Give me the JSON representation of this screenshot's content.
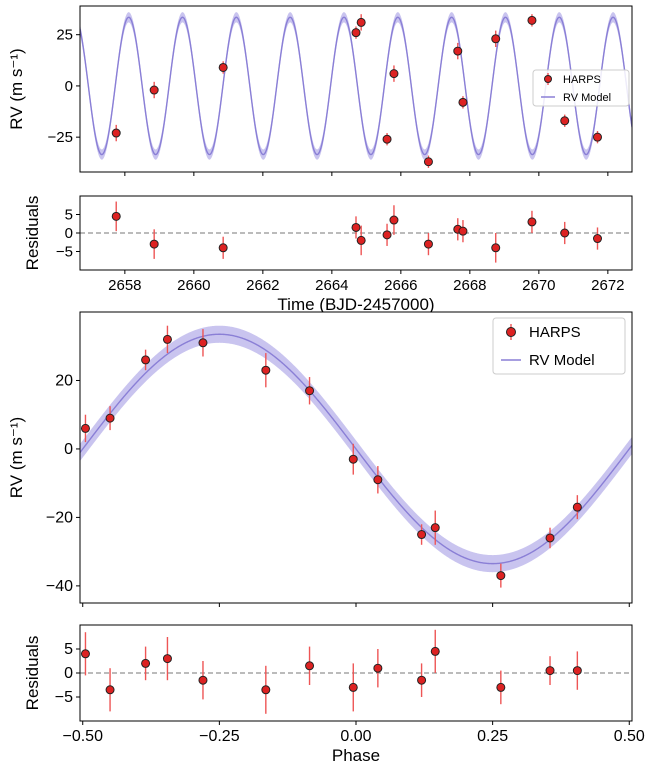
{
  "chart_data": [
    {
      "id": "time_rv",
      "type": "scatter",
      "xlabel": "",
      "ylabel": "RV (m s⁻¹)",
      "xlim": [
        2656.7,
        2672.7
      ],
      "ylim": [
        -42,
        39
      ],
      "yticks": [
        -25,
        0,
        25
      ],
      "legend": {
        "placement": "center-right",
        "entries": [
          "HARPS",
          "RV Model"
        ]
      },
      "model": {
        "name": "RV Model",
        "type": "sinusoid",
        "amplitude": 33.5,
        "period": 1.56,
        "phase_ref_x": 2657.8,
        "phase_ref_phase": -0.45,
        "color": "#8a7fd6",
        "band_color": "#b7b0ea"
      },
      "series": [
        {
          "name": "HARPS",
          "color": "#dd2222",
          "points": [
            {
              "x": 2657.75,
              "y": -23,
              "err": 4
            },
            {
              "x": 2658.85,
              "y": -2,
              "err": 4
            },
            {
              "x": 2660.85,
              "y": 9,
              "err": 3
            },
            {
              "x": 2664.7,
              "y": 26,
              "err": 3
            },
            {
              "x": 2664.85,
              "y": 31,
              "err": 4
            },
            {
              "x": 2665.6,
              "y": -26,
              "err": 3
            },
            {
              "x": 2665.8,
              "y": 6,
              "err": 4
            },
            {
              "x": 2666.8,
              "y": -37,
              "err": 3
            },
            {
              "x": 2667.65,
              "y": 17,
              "err": 4
            },
            {
              "x": 2667.8,
              "y": -8,
              "err": 3
            },
            {
              "x": 2668.75,
              "y": 23,
              "err": 4
            },
            {
              "x": 2669.8,
              "y": 32,
              "err": 3
            },
            {
              "x": 2670.75,
              "y": -17,
              "err": 3
            },
            {
              "x": 2671.7,
              "y": -25,
              "err": 3
            }
          ]
        }
      ]
    },
    {
      "id": "time_resid",
      "type": "scatter",
      "xlabel": "Time (BJD-2457000)",
      "ylabel": "Residuals",
      "xlim": [
        2656.7,
        2672.7
      ],
      "ylim": [
        -10,
        10
      ],
      "yticks": [
        -5,
        0,
        5
      ],
      "xticks": [
        2658,
        2660,
        2662,
        2664,
        2666,
        2668,
        2670,
        2672
      ],
      "zero_line": true,
      "series": [
        {
          "name": "HARPS",
          "color": "#dd2222",
          "points": [
            {
              "x": 2657.75,
              "y": 4.5,
              "err": 4
            },
            {
              "x": 2658.85,
              "y": -3,
              "err": 4
            },
            {
              "x": 2660.85,
              "y": -4,
              "err": 3
            },
            {
              "x": 2664.7,
              "y": 1.5,
              "err": 3
            },
            {
              "x": 2664.85,
              "y": -2,
              "err": 4
            },
            {
              "x": 2665.6,
              "y": -0.5,
              "err": 3
            },
            {
              "x": 2665.8,
              "y": 3.5,
              "err": 4
            },
            {
              "x": 2666.8,
              "y": -3,
              "err": 3
            },
            {
              "x": 2667.65,
              "y": 1,
              "err": 3
            },
            {
              "x": 2667.8,
              "y": 0.5,
              "err": 3
            },
            {
              "x": 2668.75,
              "y": -4,
              "err": 4
            },
            {
              "x": 2669.8,
              "y": 3,
              "err": 3
            },
            {
              "x": 2670.75,
              "y": 0,
              "err": 3
            },
            {
              "x": 2671.7,
              "y": -1.5,
              "err": 3
            }
          ]
        }
      ]
    },
    {
      "id": "phase_rv",
      "type": "scatter",
      "xlabel": "",
      "ylabel": "RV (m s⁻¹)",
      "xlim": [
        -0.505,
        0.505
      ],
      "ylim": [
        -45,
        40
      ],
      "yticks": [
        -40,
        -20,
        0,
        20
      ],
      "legend": {
        "placement": "top-right",
        "entries": [
          "HARPS",
          "RV Model"
        ]
      },
      "model": {
        "name": "RV Model",
        "type": "sinusoid",
        "amplitude": 33.5,
        "color": "#8a7fd6",
        "band_color": "#b7b0ea",
        "band_width": 2.5
      },
      "series": [
        {
          "name": "HARPS",
          "color": "#dd2222",
          "points": [
            {
              "x": -0.495,
              "y": 6,
              "err": 4
            },
            {
              "x": -0.45,
              "y": 9,
              "err": 3.5
            },
            {
              "x": -0.385,
              "y": 26,
              "err": 3
            },
            {
              "x": -0.345,
              "y": 32,
              "err": 4
            },
            {
              "x": -0.28,
              "y": 31,
              "err": 4
            },
            {
              "x": -0.165,
              "y": 23,
              "err": 5
            },
            {
              "x": -0.085,
              "y": 17,
              "err": 4
            },
            {
              "x": -0.005,
              "y": -3,
              "err": 4.5
            },
            {
              "x": 0.04,
              "y": -9,
              "err": 4
            },
            {
              "x": 0.12,
              "y": -25,
              "err": 3
            },
            {
              "x": 0.145,
              "y": -23,
              "err": 5
            },
            {
              "x": 0.265,
              "y": -37,
              "err": 3.5
            },
            {
              "x": 0.355,
              "y": -26,
              "err": 3
            },
            {
              "x": 0.405,
              "y": -17,
              "err": 3.5
            }
          ]
        }
      ]
    },
    {
      "id": "phase_resid",
      "type": "scatter",
      "xlabel": "Phase",
      "ylabel": "Residuals",
      "xlim": [
        -0.505,
        0.505
      ],
      "ylim": [
        -10,
        10
      ],
      "yticks": [
        -5,
        0,
        5
      ],
      "xticks": [
        -0.5,
        -0.25,
        0,
        0.25,
        0.5
      ],
      "xtick_labels": [
        "−0.50",
        "−0.25",
        "0.00",
        "0.25",
        "0.50"
      ],
      "zero_line": true,
      "series": [
        {
          "name": "HARPS",
          "color": "#dd2222",
          "points": [
            {
              "x": -0.495,
              "y": 4,
              "err": 4.5
            },
            {
              "x": -0.45,
              "y": -3.5,
              "err": 4.5
            },
            {
              "x": -0.385,
              "y": 2,
              "err": 3.5
            },
            {
              "x": -0.345,
              "y": 3,
              "err": 4.5
            },
            {
              "x": -0.28,
              "y": -1.5,
              "err": 4
            },
            {
              "x": -0.165,
              "y": -3.5,
              "err": 5
            },
            {
              "x": -0.085,
              "y": 1.5,
              "err": 4
            },
            {
              "x": -0.005,
              "y": -3,
              "err": 5
            },
            {
              "x": 0.04,
              "y": 1,
              "err": 4
            },
            {
              "x": 0.12,
              "y": -1.5,
              "err": 3.5
            },
            {
              "x": 0.145,
              "y": 4.5,
              "err": 4.5
            },
            {
              "x": 0.265,
              "y": -3,
              "err": 3.5
            },
            {
              "x": 0.355,
              "y": 0.5,
              "err": 3
            },
            {
              "x": 0.405,
              "y": 0.5,
              "err": 4
            }
          ]
        }
      ]
    }
  ]
}
